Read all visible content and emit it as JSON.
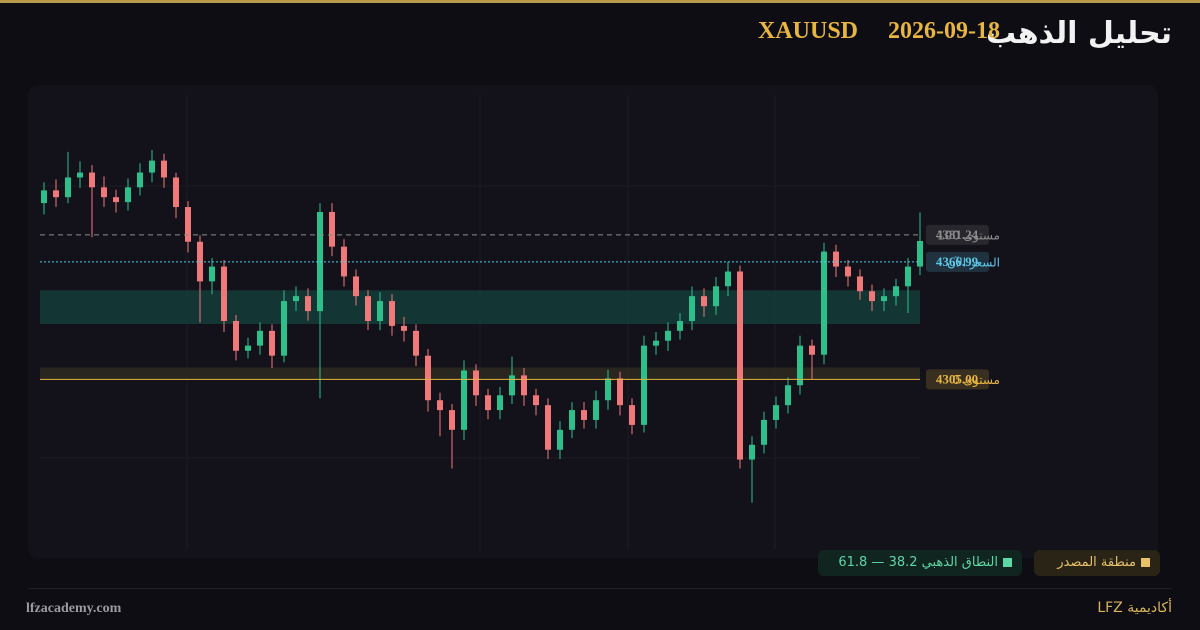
{
  "header": {
    "title": "تحليل الذهب",
    "date": "2026-09-18",
    "symbol": "XAUUSD"
  },
  "chart_data": {
    "type": "candlestick",
    "ylim": [
      4215,
      4455
    ],
    "up_color": "#2ec08a",
    "down_color": "#f07878",
    "open": [
      4398.0,
      4404.7,
      4401.1,
      4411.5,
      4414.1,
      4406.3,
      4401.1,
      4398.5,
      4406.3,
      4414.1,
      4420.4,
      4411.5,
      4395.9,
      4377.6,
      4356.7,
      4364.5,
      4335.8,
      4320.1,
      4322.8,
      4330.6,
      4317.5,
      4346.3,
      4348.9,
      4341.0,
      4393.3,
      4375.0,
      4359.3,
      4348.9,
      4335.8,
      4346.3,
      4333.2,
      4330.6,
      4317.5,
      4294.0,
      4288.8,
      4278.4,
      4309.7,
      4296.6,
      4288.8,
      4296.6,
      4307.1,
      4296.6,
      4291.4,
      4267.9,
      4278.4,
      4288.8,
      4283.6,
      4294.0,
      4305.5,
      4291.4,
      4281.0,
      4322.8,
      4325.4,
      4330.6,
      4335.8,
      4348.9,
      4343.6,
      4354.1,
      4361.9,
      4262.7,
      4270.5,
      4283.6,
      4291.4,
      4301.9,
      4322.8,
      4318.0,
      4372.4,
      4364.5,
      4359.3,
      4351.5,
      4346.3,
      4348.9,
      4354.1,
      4364.5
    ],
    "high": [
      4409.0,
      4410.5,
      4425.0,
      4420.0,
      4418.0,
      4412.0,
      4405.0,
      4411.0,
      4419.0,
      4426.0,
      4424.0,
      4414.0,
      4399.0,
      4381.0,
      4369.0,
      4368.0,
      4339.0,
      4327.0,
      4335.0,
      4334.0,
      4352.0,
      4354.0,
      4353.0,
      4398.0,
      4398.0,
      4379.0,
      4363.0,
      4352.0,
      4351.0,
      4350.0,
      4338.0,
      4334.0,
      4321.0,
      4298.0,
      4292.0,
      4315.0,
      4313.0,
      4300.0,
      4301.0,
      4317.0,
      4311.0,
      4300.0,
      4295.0,
      4283.0,
      4293.0,
      4293.0,
      4299.0,
      4310.0,
      4309.0,
      4295.0,
      4328.0,
      4330.0,
      4335.0,
      4340.0,
      4354.0,
      4353.0,
      4359.0,
      4367.0,
      4365.0,
      4275.0,
      4288.0,
      4296.0,
      4306.0,
      4328.0,
      4326.0,
      4377.0,
      4376.0,
      4368.0,
      4363.0,
      4355.0,
      4353.0,
      4358.0,
      4369.0,
      4393.0
    ],
    "low": [
      4392.0,
      4396.0,
      4398.0,
      4406.0,
      4380.0,
      4396.0,
      4393.0,
      4394.0,
      4402.0,
      4409.0,
      4406.0,
      4390.0,
      4372.0,
      4335.0,
      4350.0,
      4330.0,
      4315.0,
      4316.0,
      4318.0,
      4311.0,
      4314.0,
      4341.0,
      4336.0,
      4295.0,
      4370.0,
      4354.0,
      4344.0,
      4331.0,
      4331.0,
      4328.0,
      4325.0,
      4312.0,
      4288.0,
      4275.0,
      4258.0,
      4273.0,
      4291.0,
      4284.0,
      4284.0,
      4292.0,
      4291.0,
      4286.0,
      4263.0,
      4263.0,
      4274.0,
      4279.0,
      4279.0,
      4289.0,
      4286.0,
      4276.0,
      4277.0,
      4318.0,
      4320.0,
      4326.0,
      4331.0,
      4338.0,
      4339.0,
      4349.0,
      4258.0,
      4240.0,
      4266.0,
      4279.0,
      4287.0,
      4297.0,
      4305.0,
      4313.0,
      4359.0,
      4354.0,
      4347.0,
      4341.0,
      4341.0,
      4344.0,
      4340.0,
      4360.0
    ],
    "close": [
      4404.7,
      4401.1,
      4411.5,
      4414.1,
      4406.3,
      4401.1,
      4398.5,
      4406.3,
      4414.1,
      4420.4,
      4411.5,
      4395.9,
      4377.6,
      4356.7,
      4364.5,
      4335.8,
      4320.1,
      4322.8,
      4330.6,
      4317.5,
      4346.3,
      4348.9,
      4341.0,
      4393.3,
      4375.0,
      4359.3,
      4348.9,
      4335.8,
      4346.3,
      4333.2,
      4330.6,
      4317.5,
      4294.0,
      4288.8,
      4278.4,
      4309.7,
      4296.6,
      4288.8,
      4296.6,
      4307.1,
      4296.6,
      4291.4,
      4267.9,
      4278.4,
      4288.8,
      4283.6,
      4294.0,
      4305.5,
      4291.4,
      4281.0,
      4322.8,
      4325.4,
      4330.6,
      4335.8,
      4348.9,
      4343.6,
      4354.1,
      4361.9,
      4262.7,
      4270.5,
      4283.6,
      4291.4,
      4301.9,
      4322.8,
      4318.0,
      4372.4,
      4364.5,
      4359.3,
      4351.5,
      4346.3,
      4348.9,
      4354.1,
      4364.5,
      4378.0
    ],
    "zones": [
      {
        "from": 4334.2,
        "to": 4352.0,
        "color": "#143a36"
      },
      {
        "from": 4305.0,
        "to": 4311.3,
        "color": "#2c2820"
      }
    ],
    "levels": [
      {
        "label": "مستوى 100",
        "value": 4381.24,
        "value_label": "4381.24",
        "color": "#8c8c8c",
        "style": "dashed"
      },
      {
        "label": "السعر الآن",
        "value": 4366.99,
        "value_label": "4366.99",
        "color": "#5cc8e8",
        "style": "dotted"
      },
      {
        "label": "مستوى 0",
        "value": 4305.0,
        "value_label": "4305.00",
        "color": "#e8b640",
        "style": "solid"
      }
    ],
    "legend": {
      "source_zone": "منطقة المصدر",
      "golden_zone": "النطاق الذهبي 38.2 — 61.8"
    }
  },
  "footer": {
    "site": "lfzacademy.com",
    "brand": "أكاديمية LFZ"
  }
}
